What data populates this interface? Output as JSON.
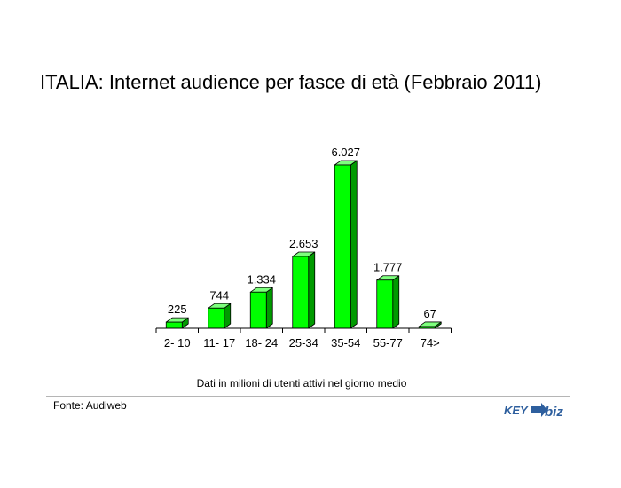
{
  "header": {
    "title": "ITALIA: Internet audience per fasce di età (Febbraio 2011)"
  },
  "chart_data": {
    "type": "bar",
    "title": "ITALIA: Internet audience per fasce di età (Febbraio 2011)",
    "subtitle": "Dati in milioni di utenti attivi nel giorno medio",
    "categories": [
      "2- 10",
      "11- 17",
      "18- 24",
      "25-34",
      "35-54",
      "55-77",
      "74>"
    ],
    "values": [
      225,
      744,
      1334,
      2653,
      6027,
      1777,
      67
    ],
    "value_labels": [
      "225",
      "744",
      "1.334",
      "2.653",
      "6.027",
      "1.777",
      "67"
    ],
    "ylim": [
      0,
      6027
    ],
    "grid": false,
    "legend": "none",
    "bar_color": "#00ff00",
    "bar_side_color": "#009a00",
    "bar_top_color": "#7dff7d",
    "style": "3d-bar"
  },
  "footer": {
    "source": "Fonte: Audiweb",
    "logo_left": "KEY",
    "logo_right": "biz",
    "logo_color": "#2e5f9e"
  }
}
